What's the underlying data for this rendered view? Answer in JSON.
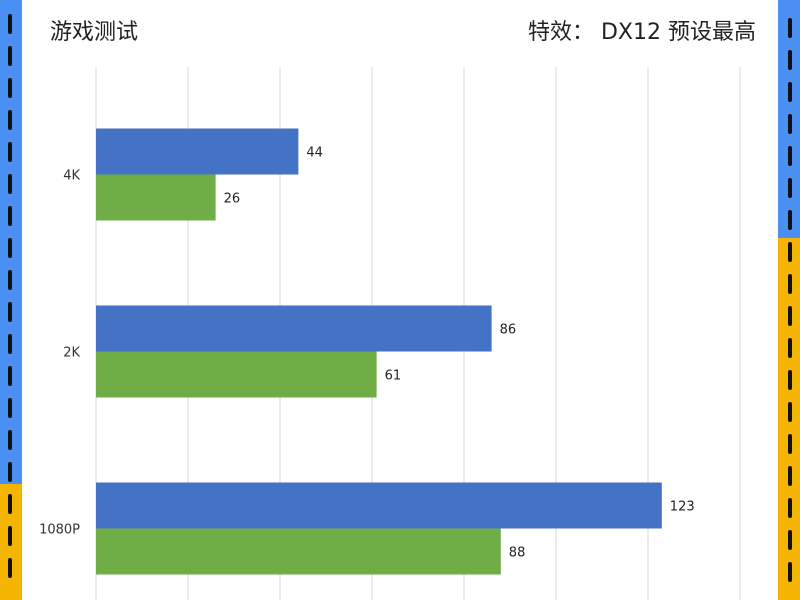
{
  "header": {
    "title": "游戏测试",
    "subtitle": "特效：  DX12 预设最高"
  },
  "colors": {
    "series_1": "#4472c4",
    "series_2": "#70ad47",
    "gridline": "#d9d9d9",
    "border_blue": "#4a8ff2",
    "border_yellow": "#f5b400"
  },
  "chart_data": {
    "type": "bar",
    "orientation": "horizontal",
    "categories": [
      "4K",
      "2K",
      "1080P"
    ],
    "series": [
      {
        "values": [
          44,
          86,
          123
        ]
      },
      {
        "values": [
          26,
          61,
          88
        ]
      }
    ],
    "title": "",
    "xlabel": "",
    "ylabel": "",
    "xlim": [
      0,
      140
    ],
    "grid": true,
    "legend": "none"
  }
}
